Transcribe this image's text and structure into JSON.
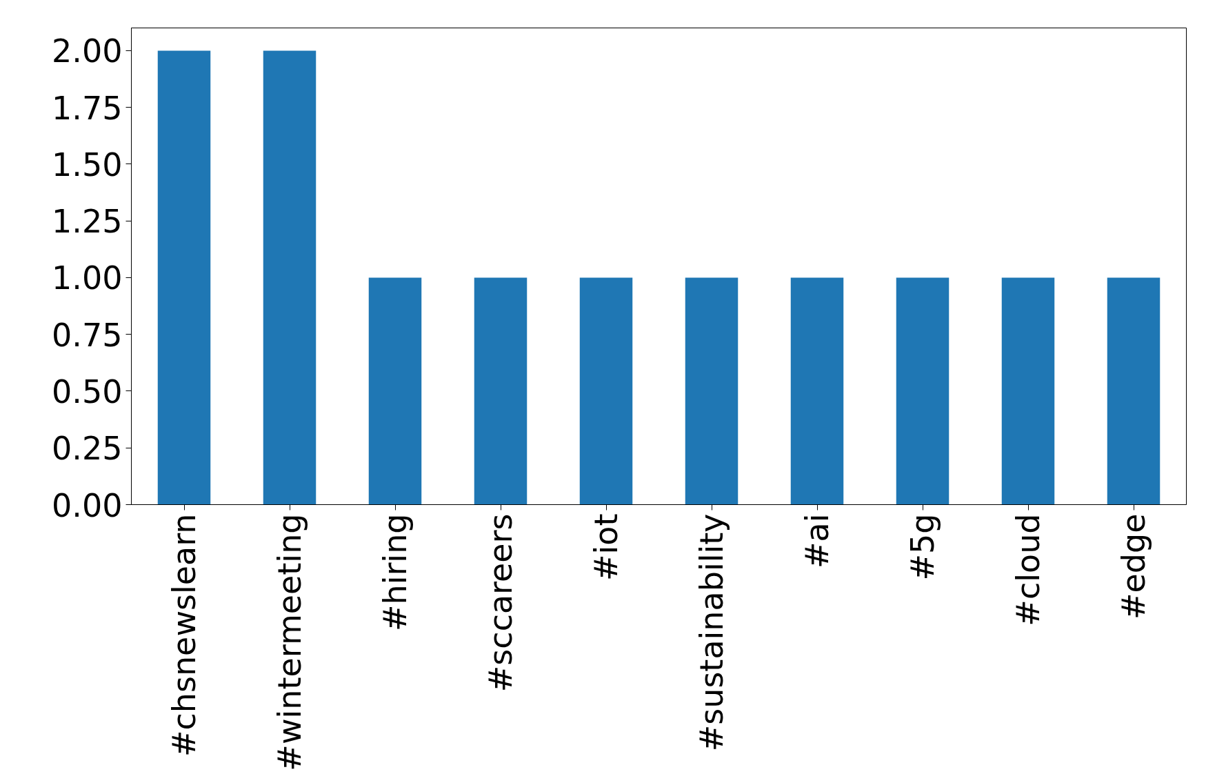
{
  "chart_data": {
    "type": "bar",
    "categories": [
      "#chsnewslearn",
      "#wintermeeting",
      "#hiring",
      "#sccareers",
      "#iot",
      "#sustainability",
      "#ai",
      "#5g",
      "#cloud",
      "#edge"
    ],
    "values": [
      2,
      2,
      1,
      1,
      1,
      1,
      1,
      1,
      1,
      1
    ],
    "color": "#1f77b4",
    "ylim": [
      0,
      2.1
    ],
    "yticks": [
      {
        "value": 0,
        "label": "0.00"
      },
      {
        "value": 0.25,
        "label": "0.25"
      },
      {
        "value": 0.5,
        "label": "0.50"
      },
      {
        "value": 0.75,
        "label": "0.75"
      },
      {
        "value": 1,
        "label": "1.00"
      },
      {
        "value": 1.25,
        "label": "1.25"
      },
      {
        "value": 1.5,
        "label": "1.50"
      },
      {
        "value": 1.75,
        "label": "1.75"
      },
      {
        "value": 2,
        "label": "2.00"
      }
    ],
    "grid": false
  }
}
